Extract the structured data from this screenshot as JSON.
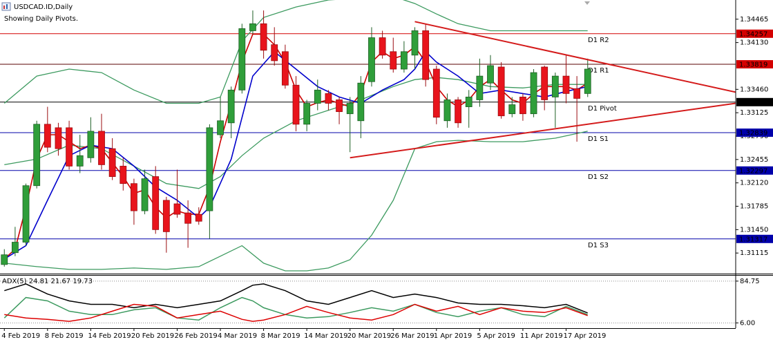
{
  "chart_data": [
    {
      "type": "candlestick",
      "title": "USDCAD.ID,Daily",
      "subtitle": "Showing Daily Pivots.",
      "categories": [
        "4 Feb 2019",
        null,
        null,
        null,
        "8 Feb 2019",
        null,
        null,
        null,
        "14 Feb 2019",
        null,
        null,
        null,
        "20 Feb 2019",
        null,
        null,
        null,
        "26 Feb 2019",
        null,
        null,
        null,
        "4 Mar 2019",
        null,
        null,
        null,
        "8 Mar 2019",
        null,
        null,
        null,
        "14 Mar 2019",
        null,
        null,
        null,
        "20 Mar 2019",
        null,
        null,
        null,
        "26 Mar 2019",
        null,
        null,
        null,
        "1 Apr 2019",
        null,
        null,
        null,
        "5 Apr 2019",
        null,
        null,
        null,
        "11 Apr 2019",
        null,
        null,
        null,
        "17 Apr 2019",
        null,
        null
      ],
      "open": [
        1.3095,
        1.3112,
        1.3127,
        1.3208,
        1.3296,
        1.3291,
        1.3291,
        1.3236,
        1.3248,
        1.3286,
        1.3261,
        1.3236,
        1.3211,
        1.3172,
        1.3221,
        1.3187,
        1.3182,
        1.3169,
        1.3167,
        1.3172,
        1.3281,
        1.3298,
        1.3345,
        1.343,
        1.344,
        1.341,
        1.34,
        1.3352,
        1.3296,
        1.3326,
        1.334,
        1.3331,
        1.3311,
        1.3301,
        1.3357,
        1.342,
        1.34,
        1.3375,
        1.3395,
        1.343,
        1.3375,
        1.3301,
        1.3331,
        1.3321,
        1.3331,
        1.3355,
        1.3378,
        1.3311,
        1.3335,
        1.3311,
        1.3378,
        1.3335,
        1.3365,
        1.3347,
        1.334
      ],
      "high": [
        1.3117,
        1.3149,
        1.3211,
        1.3301,
        1.3321,
        1.3298,
        1.3301,
        1.3281,
        1.3306,
        1.3311,
        1.3276,
        1.3248,
        1.3218,
        1.3231,
        1.3236,
        1.3192,
        1.3231,
        1.3187,
        1.3177,
        1.3296,
        1.3335,
        1.335,
        1.344,
        1.3459,
        1.3459,
        1.3435,
        1.341,
        1.3365,
        1.3331,
        1.336,
        1.3345,
        1.3335,
        1.3335,
        1.3365,
        1.3435,
        1.343,
        1.342,
        1.3415,
        1.3435,
        1.344,
        1.338,
        1.334,
        1.3335,
        1.3345,
        1.339,
        1.3395,
        1.3385,
        1.3335,
        1.334,
        1.3375,
        1.338,
        1.337,
        1.3395,
        1.3365,
        1.339
      ],
      "low": [
        1.3092,
        1.3107,
        1.3122,
        1.3204,
        1.3256,
        1.3251,
        1.3231,
        1.3226,
        1.3241,
        1.3231,
        1.3216,
        1.3201,
        1.3152,
        1.3167,
        1.3139,
        1.3112,
        1.3162,
        1.3119,
        1.3152,
        1.3132,
        1.3276,
        1.3276,
        1.334,
        1.3425,
        1.339,
        1.338,
        1.3347,
        1.3286,
        1.3286,
        1.3316,
        1.3316,
        1.3296,
        1.3256,
        1.3276,
        1.335,
        1.339,
        1.337,
        1.337,
        1.3375,
        1.335,
        1.3296,
        1.3291,
        1.3291,
        1.3291,
        1.3321,
        1.3345,
        1.3304,
        1.3306,
        1.3301,
        1.3306,
        1.3316,
        1.3291,
        1.3326,
        1.3271,
        1.3335
      ],
      "close": [
        1.3109,
        1.3127,
        1.3208,
        1.3296,
        1.3263,
        1.3261,
        1.3236,
        1.3251,
        1.3286,
        1.3238,
        1.3221,
        1.3211,
        1.3172,
        1.3218,
        1.3145,
        1.3142,
        1.3167,
        1.3154,
        1.3157,
        1.3291,
        1.3301,
        1.3345,
        1.3433,
        1.344,
        1.3402,
        1.3387,
        1.3352,
        1.3296,
        1.3326,
        1.3345,
        1.3326,
        1.3314,
        1.3326,
        1.3355,
        1.342,
        1.3395,
        1.3375,
        1.34,
        1.343,
        1.336,
        1.3306,
        1.3331,
        1.3298,
        1.3335,
        1.3365,
        1.338,
        1.3308,
        1.3324,
        1.3311,
        1.337,
        1.3331,
        1.3365,
        1.334,
        1.3333,
        1.3375
      ],
      "up_color": "#2f9e3a",
      "down_color": "#e8141c",
      "xlim": [
        -0.4,
        67.7
      ],
      "ylim": [
        1.3083,
        1.3474
      ],
      "yticks": [
        1.34465,
        {
          "value": 1.3413,
          "label": "1.34130"
        },
        {
          "value": 1.3346,
          "label": "1.33460"
        },
        1.33125,
        {
          "value": 1.3279,
          "label": "1.32790"
        },
        1.32455,
        {
          "value": 1.3212,
          "label": "1.32120"
        },
        1.31785,
        {
          "value": 1.3145,
          "label": "1.31450"
        },
        1.31115
      ],
      "overlays": [
        {
          "color": "#3c9a5f",
          "x": [
            0,
            3,
            6,
            9,
            12,
            15,
            18,
            20,
            22,
            24,
            27,
            30,
            33,
            36,
            38,
            40,
            42,
            45,
            48,
            51,
            54
          ],
          "values": [
            1.3326,
            1.3365,
            1.3375,
            1.337,
            1.3345,
            1.3326,
            1.3326,
            1.3335,
            1.3415,
            1.3449,
            1.3464,
            1.3474,
            1.3477,
            1.3479,
            1.3469,
            1.3454,
            1.344,
            1.343,
            1.343,
            1.343,
            1.343
          ]
        },
        {
          "color": "#3c9a5f",
          "x": [
            0,
            3,
            6,
            9,
            12,
            15,
            18,
            20,
            22,
            24,
            27,
            30,
            33,
            36,
            38,
            40,
            42,
            45,
            48,
            51,
            54
          ],
          "values": [
            1.3238,
            1.3246,
            1.3266,
            1.3261,
            1.3236,
            1.3211,
            1.3204,
            1.3221,
            1.3251,
            1.3276,
            1.3301,
            1.3316,
            1.3331,
            1.335,
            1.336,
            1.3363,
            1.336,
            1.335,
            1.3348,
            1.3353,
            1.3353
          ]
        },
        {
          "color": "#3c9a5f",
          "x": [
            0,
            3,
            6,
            9,
            12,
            15,
            18,
            20,
            22,
            24,
            26,
            28,
            30,
            32,
            34,
            36,
            38,
            40,
            42,
            45,
            48,
            51,
            54
          ],
          "values": [
            1.3097,
            1.3092,
            1.3088,
            1.3088,
            1.309,
            1.3088,
            1.3092,
            1.3107,
            1.3122,
            1.3097,
            1.3086,
            1.3086,
            1.309,
            1.3102,
            1.3137,
            1.3187,
            1.3261,
            1.3271,
            1.3273,
            1.3271,
            1.3271,
            1.3276,
            1.3286
          ]
        },
        {
          "color": "#cc0000",
          "values": [
            1.3103,
            1.3117,
            1.3177,
            1.3246,
            1.3281,
            1.3281,
            1.3271,
            1.3261,
            1.3266,
            1.3261,
            1.3241,
            1.3221,
            1.3197,
            1.3202,
            1.3177,
            1.3162,
            1.3172,
            1.3167,
            1.3167,
            1.3206,
            1.3271,
            1.3326,
            1.3385,
            1.3425,
            1.3425,
            1.341,
            1.3385,
            1.3345,
            1.3321,
            1.3327,
            1.3331,
            1.3326,
            1.3321,
            1.334,
            1.3385,
            1.34,
            1.339,
            1.3395,
            1.3407,
            1.3385,
            1.335,
            1.3331,
            1.3321,
            1.3331,
            1.335,
            1.336,
            1.3345,
            1.3331,
            1.3326,
            1.334,
            1.335,
            1.335,
            1.335,
            1.3345,
            1.3355
          ]
        },
        {
          "color": "#0000cc",
          "x": [
            0,
            2,
            4,
            6,
            8,
            10,
            12,
            14,
            16,
            18,
            19,
            21,
            23,
            25,
            27,
            29,
            31,
            33,
            35,
            37,
            38,
            39,
            40,
            42,
            44,
            46,
            48,
            50,
            52,
            54
          ],
          "values": [
            1.3103,
            1.3122,
            1.3187,
            1.3251,
            1.3266,
            1.3261,
            1.3236,
            1.3206,
            1.3187,
            1.3162,
            1.3177,
            1.3246,
            1.3365,
            1.34,
            1.3375,
            1.335,
            1.3335,
            1.3326,
            1.3345,
            1.336,
            1.3375,
            1.34,
            1.3385,
            1.3365,
            1.334,
            1.3345,
            1.334,
            1.3335,
            1.3343,
            1.335
          ]
        }
      ],
      "trendlines": [
        {
          "color": "#d41a1a",
          "x": [
            38,
            67.7
          ],
          "values": [
            1.3443,
            1.3342
          ]
        },
        {
          "color": "#d41a1a",
          "x": [
            32,
            67.7
          ],
          "values": [
            1.3248,
            1.3326
          ]
        }
      ],
      "levels": [
        {
          "label": "D1 R2",
          "value": 1.34257,
          "color": "#d40000",
          "line_color": "#d40000"
        },
        {
          "label": "D1 R1",
          "value": 1.33819,
          "color": "#d40000",
          "line_color": "#5a0000"
        },
        {
          "label": "D1 Pivot",
          "value": 1.33277,
          "color": "#000000",
          "line_color": "#000000"
        },
        {
          "label": "D1 S1",
          "value": 1.32839,
          "color": "#0000aa",
          "line_color": "#0000aa"
        },
        {
          "label": "D1 S2",
          "value": 1.32297,
          "color": "#0000aa",
          "line_color": "#0000aa"
        },
        {
          "label": "D1 S3",
          "value": 1.31317,
          "color": "#0000aa",
          "line_color": "#0000aa"
        }
      ]
    },
    {
      "type": "line",
      "title": "ADX(5) 24.81 21.67 19.73",
      "xlim": [
        -0.4,
        67.7
      ],
      "ylim": [
        -4,
        95
      ],
      "yticks": [
        84.75,
        {
          "value": 6,
          "label": "6.00"
        }
      ],
      "grid": true,
      "series": [
        {
          "color": "#000000",
          "x": [
            0,
            2,
            4,
            6,
            8,
            10,
            12,
            14,
            16,
            18,
            20,
            22,
            23,
            24,
            26,
            28,
            30,
            32,
            34,
            36,
            38,
            40,
            42,
            44,
            46,
            48,
            50,
            52,
            54
          ],
          "values": [
            66.7,
            79.5,
            60.3,
            47.4,
            41,
            41,
            34.6,
            41,
            34.6,
            41,
            47.4,
            66.7,
            77,
            79.5,
            66.7,
            47.4,
            41,
            53.8,
            66.7,
            53.8,
            60.3,
            53.8,
            43.5,
            41,
            41,
            38.4,
            34.6,
            41,
            24.81
          ]
        },
        {
          "color": "#3c9a5f",
          "x": [
            0,
            2,
            4,
            6,
            8,
            10,
            12,
            14,
            16,
            18,
            20,
            22,
            23,
            24,
            26,
            28,
            30,
            32,
            34,
            36,
            38,
            40,
            42,
            44,
            46,
            48,
            50,
            52,
            54
          ],
          "values": [
            15.3,
            53.8,
            47.4,
            28.1,
            21.7,
            21.7,
            30.7,
            34.6,
            15.3,
            11.4,
            34.6,
            53.8,
            47.4,
            34.6,
            21.7,
            15.3,
            17.8,
            25.6,
            34.6,
            28.1,
            41,
            25.6,
            17.8,
            28.1,
            34.6,
            21.7,
            17.8,
            37.1,
            21.67
          ]
        },
        {
          "color": "#dd0000",
          "x": [
            0,
            2,
            4,
            6,
            8,
            10,
            12,
            14,
            16,
            18,
            20,
            22,
            23,
            24,
            26,
            28,
            30,
            32,
            34,
            36,
            38,
            40,
            42,
            44,
            46,
            48,
            50,
            52,
            54
          ],
          "values": [
            21.7,
            15.3,
            12.7,
            8.9,
            15.3,
            28.1,
            41,
            37.1,
            15.3,
            21.7,
            28.1,
            12.7,
            8.9,
            11.4,
            21.7,
            37.1,
            25.6,
            15.3,
            11.4,
            21.7,
            41,
            28.1,
            37.1,
            21.7,
            34.6,
            28.1,
            25.6,
            34.6,
            19.73
          ]
        }
      ]
    }
  ]
}
